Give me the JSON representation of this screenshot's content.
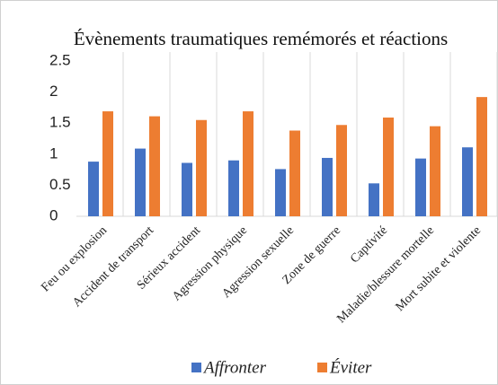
{
  "chart_data": {
    "type": "bar",
    "title": "Évènements traumatiques remémorés et réactions",
    "categories": [
      "Feu ou explosion",
      "Accident de transport",
      "Sérieux accident",
      "Agression physique",
      "Agression sexuelle",
      "Zone de guerre",
      "Captivité",
      "Maladie/blessure mortelle",
      "Mort subite et violente"
    ],
    "series": [
      {
        "name": "Affronter",
        "color": "#4472c4",
        "values": [
          0.88,
          1.09,
          0.86,
          0.9,
          0.76,
          0.94,
          0.53,
          0.93,
          1.11
        ]
      },
      {
        "name": "Éviter",
        "color": "#ed7d31",
        "values": [
          1.69,
          1.61,
          1.55,
          1.69,
          1.38,
          1.47,
          1.59,
          1.45,
          1.92
        ]
      }
    ],
    "ylim": [
      0,
      2.5
    ],
    "yticks": [
      0,
      0.5,
      1,
      1.5,
      2,
      2.5
    ],
    "legend": "bottom"
  }
}
